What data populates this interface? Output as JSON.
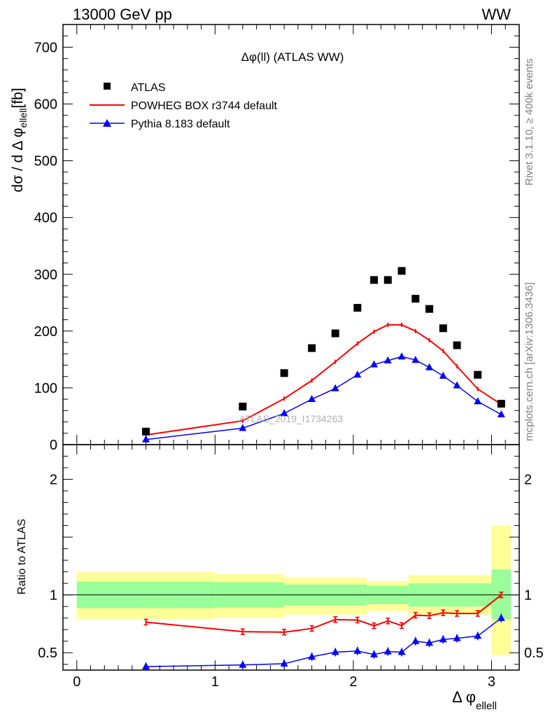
{
  "header": {
    "left": "13000 GeV pp",
    "right": "WW"
  },
  "side_labels": {
    "rivet": "Rivet 3.1.10, ≥ 400k events",
    "mcplots": "mcplots.cern.ch [arXiv:1306.3436]"
  },
  "watermark": "ATLAS_2019_I1734263",
  "chart_data": {
    "type": "line",
    "title": "Δφ(ll) (ATLAS WW)",
    "xlabel": "Δ φ",
    "xlabel_sub": "ellell",
    "ylabel": "dσ / d Δ φ",
    "ylabel_sub": "ellell",
    "ylabel_unit": "[fb]",
    "ratio_ylabel": "Ratio to ATLAS",
    "xlim": [
      -0.1,
      3.2
    ],
    "ylim": [
      0,
      740
    ],
    "ratio_ylim": [
      0.35,
      2.3
    ],
    "x_ticks": [
      "0",
      "1",
      "2",
      "3"
    ],
    "y_ticks": [
      "0",
      "100",
      "200",
      "300",
      "400",
      "500",
      "600",
      "700"
    ],
    "ratio_ticks": [
      "0.5",
      "1",
      "2"
    ],
    "legend": [
      "ATLAS",
      "POWHEG BOX r3744 default",
      "Pythia 8.183 default"
    ],
    "x": [
      0.5,
      1.2,
      1.5,
      1.7,
      1.87,
      2.03,
      2.15,
      2.25,
      2.35,
      2.45,
      2.55,
      2.65,
      2.75,
      2.9,
      3.07
    ],
    "bins": [
      [
        0.0,
        1.0
      ],
      [
        1.0,
        1.4
      ],
      [
        1.4,
        1.6
      ],
      [
        1.6,
        1.8
      ],
      [
        1.8,
        1.95
      ],
      [
        1.95,
        2.1
      ],
      [
        2.1,
        2.2
      ],
      [
        2.2,
        2.3
      ],
      [
        2.3,
        2.4
      ],
      [
        2.4,
        2.5
      ],
      [
        2.5,
        2.6
      ],
      [
        2.6,
        2.7
      ],
      [
        2.7,
        2.8
      ],
      [
        2.8,
        3.0
      ],
      [
        3.0,
        3.14
      ]
    ],
    "series": [
      {
        "name": "ATLAS",
        "color": "#000000",
        "values": [
          23,
          67,
          126,
          170,
          196,
          241,
          290,
          290,
          306,
          257,
          239,
          205,
          175,
          123,
          72
        ]
      },
      {
        "name": "POWHEG BOX r3744 default",
        "color": "#ff0000",
        "values": [
          17,
          42,
          81,
          113,
          146,
          178,
          199,
          211,
          211,
          200,
          184,
          165,
          138,
          98,
          71
        ],
        "ratio": [
          0.765,
          0.682,
          0.678,
          0.71,
          0.787,
          0.783,
          0.733,
          0.775,
          0.735,
          0.825,
          0.82,
          0.845,
          0.84,
          0.84,
          1.0
        ]
      },
      {
        "name": "Pythia 8.183 default",
        "color": "#0000ff",
        "values": [
          9,
          29,
          55,
          80,
          99,
          123,
          141,
          148,
          155,
          149,
          136,
          121,
          104,
          76,
          53
        ],
        "ratio": [
          0.38,
          0.395,
          0.405,
          0.465,
          0.505,
          0.515,
          0.485,
          0.51,
          0.505,
          0.6,
          0.585,
          0.615,
          0.625,
          0.645,
          0.8
        ]
      }
    ],
    "uncertainty_bands": {
      "bins": [
        [
          0.0,
          1.0
        ],
        [
          1.0,
          1.5
        ],
        [
          1.5,
          2.1
        ],
        [
          2.1,
          2.4
        ],
        [
          2.4,
          3.0
        ],
        [
          3.0,
          3.14
        ]
      ],
      "stat_sys_low": [
        0.79,
        0.8,
        0.83,
        0.86,
        0.83,
        0.48
      ],
      "stat_sys_high": [
        1.2,
        1.18,
        1.15,
        1.12,
        1.17,
        1.6
      ],
      "inner_low": [
        0.885,
        0.89,
        0.91,
        0.92,
        0.9,
        0.79
      ],
      "inner_high": [
        1.115,
        1.11,
        1.09,
        1.08,
        1.1,
        1.22
      ],
      "outer_color": "#ffff99",
      "inner_color": "#99ff99"
    }
  }
}
